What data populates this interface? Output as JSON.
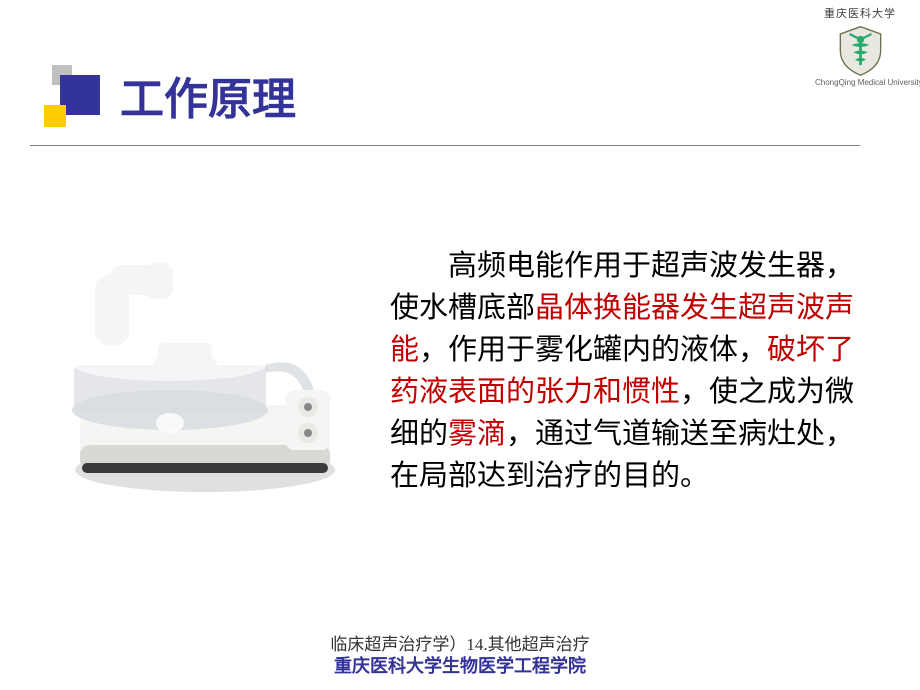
{
  "title": "工作原理",
  "logo": {
    "cn": "重庆医科大学",
    "en": "ChongQing Medical University",
    "shield_bg": "#e8e8e0",
    "shield_border": "#707050",
    "caduceus_color": "#2aa96f"
  },
  "title_blocks": {
    "blue": "#333399",
    "gray": "#c0c0c0",
    "yellow": "#ffcc00"
  },
  "body": {
    "parts": [
      {
        "t": "　　高频电能作用于超声波发生器，使水槽底部",
        "red": false
      },
      {
        "t": "晶体换能器发生超声波声能",
        "red": true
      },
      {
        "t": "，作用于雾化罐内的液体，",
        "red": false
      },
      {
        "t": "破坏了药液表面的张力和惯性",
        "red": true
      },
      {
        "t": "，使之成为微细的",
        "red": false
      },
      {
        "t": "雾滴",
        "red": true
      },
      {
        "t": "，通过气道输送至病灶处，在局部达到治疗的目的。",
        "red": false
      }
    ]
  },
  "footer1": "临床超声治疗学）14.其他超声治疗",
  "footer2_a": "重庆医科大学",
  "footer2_b": "生物医学工程学院",
  "device_colors": {
    "body": "#f5f5f3",
    "body_shadow": "#d8d8d5",
    "clear": "#d8dcdf",
    "base_dark": "#3a3a3a",
    "knob": "#e8e8e5",
    "knob_dark": "#888888"
  }
}
